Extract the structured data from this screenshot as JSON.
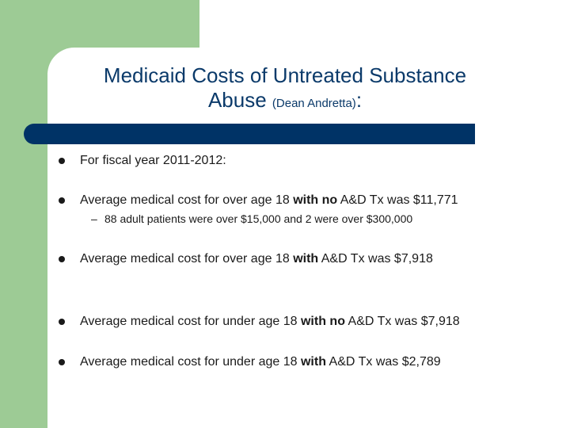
{
  "slide": {
    "title_main_line1": "Medicaid Costs of Untreated Substance",
    "title_main_line2": "Abuse ",
    "title_author": "(Dean Andretta)",
    "title_colon": ":",
    "bullets": [
      {
        "pre": "For fiscal year 2011-2012:",
        "bold": "",
        "post": ""
      },
      {
        "pre": "Average medical cost for over age 18 ",
        "bold": "with no",
        "post": " A&D Tx was $11,771"
      },
      {
        "pre": "Average medical cost for over age 18 ",
        "bold": "with",
        "post": " A&D Tx was $7,918"
      },
      {
        "pre": "Average medical cost for under age 18 ",
        "bold": "with no",
        "post": " A&D Tx was $7,918"
      },
      {
        "pre": "Average medical cost for under age 18 ",
        "bold": "with",
        "post": " A&D Tx was $2,789"
      }
    ],
    "sub_bullet": {
      "marker": "–",
      "text": "88 adult patients were over $15,000 and 2 were over $300,000"
    }
  },
  "colors": {
    "accent_green": "#9dcb95",
    "title_blue": "#0b3a6a",
    "bar_navy": "#003366"
  }
}
